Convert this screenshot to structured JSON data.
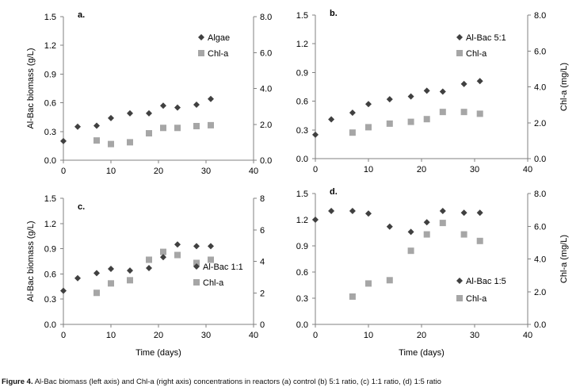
{
  "caption": {
    "label": "Figure 4.",
    "text": " Al-Bac biomass (left axis) and Chl-a (right axis) concentrations in reactors (a) control (b) 5:1 ratio, (c) 1:1 ratio, (d) 1:5 ratio"
  },
  "colors": {
    "biomass": "#404040",
    "chla": "#a6a6a6",
    "axis": "#808080"
  },
  "chart_data": [
    {
      "type": "scatter",
      "panel": "a.",
      "xlabel": "",
      "ylabel": "Al-Bac biomass (g/L)",
      "y2label": "",
      "xlim": [
        0,
        40
      ],
      "ylim": [
        0,
        1.5
      ],
      "y2lim": [
        0,
        8
      ],
      "xticks": [
        "0",
        "10",
        "20",
        "30",
        "40"
      ],
      "yticks": [
        "0.0",
        "0.3",
        "0.6",
        "0.9",
        "1.2",
        "1.5"
      ],
      "y2ticks": [
        "0.0",
        "2.0",
        "4.0",
        "6.0",
        "8.0"
      ],
      "legend_position": "top-right",
      "series": [
        {
          "name": "Algae",
          "axis": "left",
          "marker": "diamond",
          "x": [
            0,
            3,
            7,
            10,
            14,
            18,
            21,
            24,
            28,
            31
          ],
          "y": [
            0.2,
            0.35,
            0.36,
            0.44,
            0.49,
            0.49,
            0.57,
            0.55,
            0.58,
            0.64
          ]
        },
        {
          "name": "Chl-a",
          "axis": "right",
          "marker": "square",
          "x": [
            7,
            10,
            14,
            18,
            21,
            24,
            28,
            31
          ],
          "y": [
            1.1,
            0.9,
            1.0,
            1.5,
            1.8,
            1.8,
            1.9,
            1.95
          ]
        }
      ]
    },
    {
      "type": "scatter",
      "panel": "b.",
      "xlabel": "",
      "ylabel": "",
      "y2label": "Chl-a (mg/L)",
      "xlim": [
        0,
        40
      ],
      "ylim": [
        0,
        1.5
      ],
      "y2lim": [
        0,
        8
      ],
      "xticks": [
        "0",
        "10",
        "20",
        "30",
        "40"
      ],
      "yticks": [
        "0.0",
        "0.3",
        "0.6",
        "0.9",
        "1.2",
        "1.5"
      ],
      "y2ticks": [
        "0.0",
        "2.0",
        "4.0",
        "6.0",
        "8.0"
      ],
      "legend_position": "top-right",
      "series": [
        {
          "name": "Al-Bac 5:1",
          "axis": "left",
          "marker": "diamond",
          "x": [
            0,
            3,
            7,
            10,
            14,
            18,
            21,
            24,
            28,
            31
          ],
          "y": [
            0.25,
            0.41,
            0.48,
            0.57,
            0.62,
            0.65,
            0.71,
            0.7,
            0.78,
            0.81
          ]
        },
        {
          "name": "Chl-a",
          "axis": "right",
          "marker": "square",
          "x": [
            7,
            10,
            14,
            18,
            21,
            24,
            28,
            31
          ],
          "y": [
            1.45,
            1.75,
            1.95,
            2.05,
            2.2,
            2.6,
            2.6,
            2.5
          ]
        }
      ]
    },
    {
      "type": "scatter",
      "panel": "c.",
      "xlabel": "Time (days)",
      "ylabel": "Al-Bac biomass (g/L)",
      "y2label": "",
      "xlim": [
        0,
        40
      ],
      "ylim": [
        0,
        1.5
      ],
      "y2lim": [
        0,
        8
      ],
      "xticks": [
        "0",
        "10",
        "20",
        "30",
        "40"
      ],
      "yticks": [
        "0.0",
        "0.3",
        "0.6",
        "0.9",
        "1.2",
        "1.5"
      ],
      "y2ticks": [
        "0",
        "2",
        "4",
        "6",
        "8"
      ],
      "legend_position": "bottom-right",
      "series": [
        {
          "name": "Al-Bac 1:1",
          "axis": "left",
          "marker": "diamond",
          "x": [
            0,
            3,
            7,
            10,
            14,
            18,
            21,
            24,
            28,
            31
          ],
          "y": [
            0.4,
            0.55,
            0.61,
            0.66,
            0.64,
            0.67,
            0.8,
            0.95,
            0.93,
            0.93
          ]
        },
        {
          "name": "Chl-a",
          "axis": "right",
          "marker": "square",
          "x": [
            7,
            10,
            14,
            18,
            21,
            24,
            28,
            31
          ],
          "y": [
            2.0,
            2.6,
            2.8,
            4.1,
            4.6,
            4.4,
            3.9,
            4.1
          ]
        }
      ]
    },
    {
      "type": "scatter",
      "panel": "d.",
      "xlabel": "Time (days)",
      "ylabel": "",
      "y2label": "Chl-a (mg/L)",
      "xlim": [
        0,
        40
      ],
      "ylim": [
        0,
        1.5
      ],
      "y2lim": [
        0,
        8
      ],
      "xticks": [
        "0",
        "10",
        "20",
        "30",
        "40"
      ],
      "yticks": [
        "0.0",
        "0.3",
        "0.6",
        "0.9",
        "1.2",
        "1.5"
      ],
      "y2ticks": [
        "0.0",
        "2.0",
        "4.0",
        "6.0",
        "8.0"
      ],
      "legend_position": "bottom-right",
      "series": [
        {
          "name": "Al-Bac 1:5",
          "axis": "left",
          "marker": "diamond",
          "x": [
            0,
            3,
            7,
            10,
            14,
            18,
            21,
            24,
            28,
            31
          ],
          "y": [
            1.2,
            1.3,
            1.3,
            1.27,
            1.12,
            1.06,
            1.17,
            1.3,
            1.28,
            1.28
          ]
        },
        {
          "name": "Chl-a",
          "axis": "right",
          "marker": "square",
          "x": [
            7,
            10,
            14,
            18,
            21,
            24,
            28,
            31
          ],
          "y": [
            1.7,
            2.5,
            2.7,
            4.5,
            5.5,
            6.2,
            5.5,
            5.1
          ]
        }
      ]
    }
  ]
}
